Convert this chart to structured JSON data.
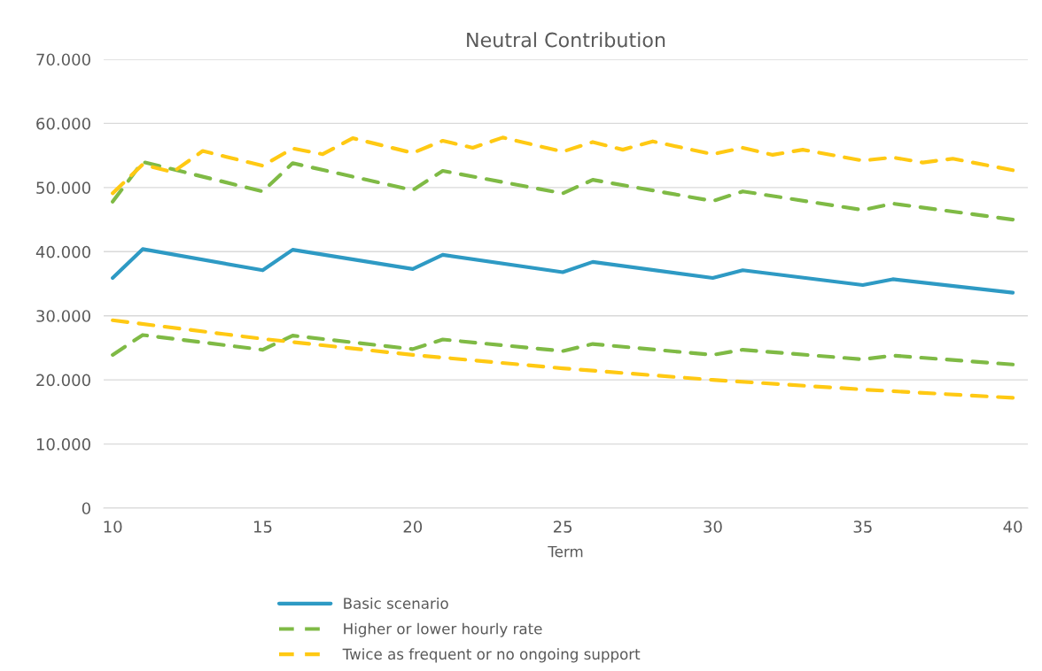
{
  "chart_data": {
    "type": "line",
    "title": "Neutral Contribution",
    "xlabel": "Term",
    "xlim": [
      9.7,
      40.5
    ],
    "xticks": [
      10,
      15,
      20,
      25,
      30,
      35,
      40
    ],
    "ylim": [
      0,
      70000
    ],
    "yticks": [
      {
        "value": 0,
        "label": "0"
      },
      {
        "value": 10000,
        "label": "10.000"
      },
      {
        "value": 20000,
        "label": "20.000"
      },
      {
        "value": 30000,
        "label": "30.000"
      },
      {
        "value": 40000,
        "label": "40.000"
      },
      {
        "value": 50000,
        "label": "50.000"
      },
      {
        "value": 60000,
        "label": "60.000"
      },
      {
        "value": 70000,
        "label": "70.000"
      }
    ],
    "grid": "y",
    "legend": "bottom",
    "marker": "none",
    "series": [
      {
        "name": "Basic scenario",
        "color": "#2e9ac4",
        "line_style": "solid",
        "x": [
          10,
          11,
          15,
          16,
          20,
          21,
          25,
          26,
          30,
          31,
          35,
          36,
          40
        ],
        "values": [
          35900,
          40400,
          37100,
          40300,
          37300,
          39500,
          36800,
          38400,
          35900,
          37100,
          34800,
          35700,
          33600
        ]
      },
      {
        "name": "Higher or lower hourly rate",
        "color": "#7fba45",
        "line_style": "dashed",
        "x": [
          10,
          11,
          15,
          16,
          20,
          21,
          25,
          26,
          30,
          31,
          35,
          36,
          40
        ],
        "values": [
          47800,
          54000,
          49400,
          53800,
          49600,
          52600,
          49100,
          51200,
          47900,
          49400,
          46500,
          47500,
          45000
        ]
      },
      {
        "color": "#7fba45",
        "line_style": "dashed",
        "x": [
          10,
          11,
          15,
          16,
          20,
          21,
          25,
          26,
          30,
          31,
          35,
          36,
          40
        ],
        "values": [
          23900,
          27000,
          24700,
          26900,
          24800,
          26300,
          24500,
          25600,
          23900,
          24700,
          23200,
          23800,
          22400
        ]
      },
      {
        "name": "Twice as frequent or no ongoing support",
        "color": "#ffc913",
        "line_style": "dashed",
        "x": [
          10,
          11,
          12,
          13,
          15,
          16,
          17,
          18,
          20,
          21,
          22,
          23,
          25,
          26,
          27,
          28,
          30,
          31,
          32,
          33,
          35,
          36,
          37,
          38,
          40
        ],
        "values": [
          49100,
          53600,
          52400,
          55700,
          53400,
          56100,
          55200,
          57700,
          55400,
          57300,
          56200,
          57800,
          55600,
          57100,
          55900,
          57200,
          55200,
          56200,
          55100,
          55900,
          54200,
          54700,
          53900,
          54500,
          52700
        ]
      },
      {
        "color": "#ffc913",
        "line_style": "dashed",
        "x": [
          10,
          15,
          20,
          25,
          30,
          35,
          40
        ],
        "values": [
          29300,
          26400,
          23900,
          21800,
          20000,
          18500,
          17200
        ]
      }
    ]
  }
}
